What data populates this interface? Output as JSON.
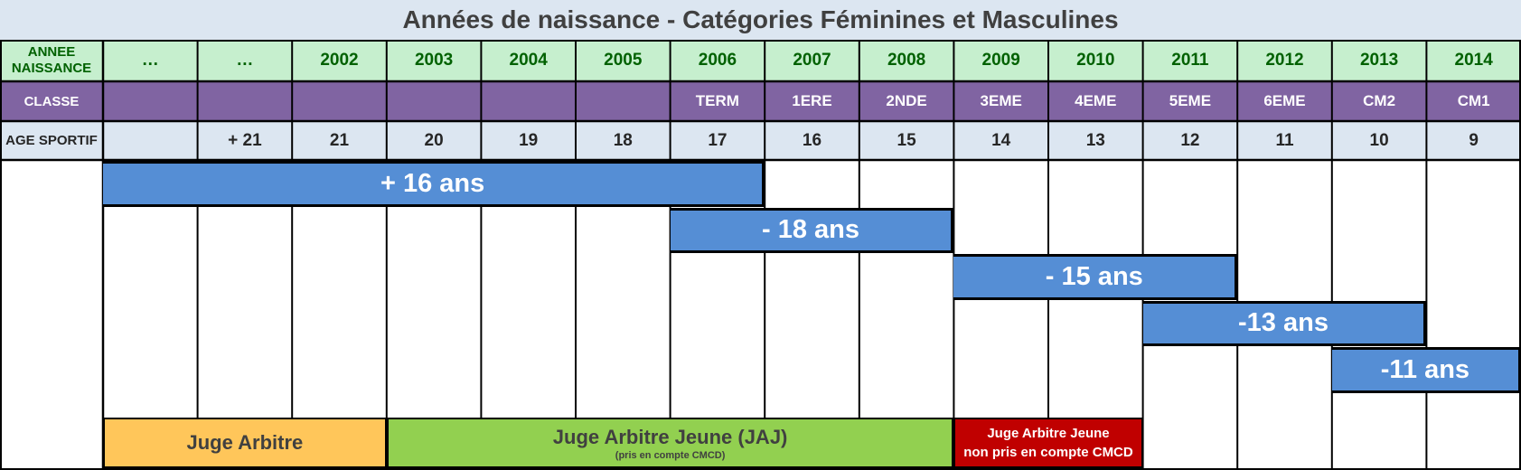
{
  "title": "Années de naissance - Catégories Féminines et Masculines",
  "headers": {
    "year_label": "ANNEE NAISSANCE",
    "class_label": "CLASSE",
    "age_label": "AGE SPORTIF"
  },
  "columns": [
    {
      "year": "…",
      "classe": "",
      "age": ""
    },
    {
      "year": "…",
      "classe": "",
      "age": "+ 21"
    },
    {
      "year": "2002",
      "classe": "",
      "age": "21"
    },
    {
      "year": "2003",
      "classe": "",
      "age": "20"
    },
    {
      "year": "2004",
      "classe": "",
      "age": "19"
    },
    {
      "year": "2005",
      "classe": "",
      "age": "18"
    },
    {
      "year": "2006",
      "classe": "TERM",
      "age": "17"
    },
    {
      "year": "2007",
      "classe": "1ERE",
      "age": "16"
    },
    {
      "year": "2008",
      "classe": "2NDE",
      "age": "15"
    },
    {
      "year": "2009",
      "classe": "3EME",
      "age": "14"
    },
    {
      "year": "2010",
      "classe": "4EME",
      "age": "13"
    },
    {
      "year": "2011",
      "classe": "5EME",
      "age": "12"
    },
    {
      "year": "2012",
      "classe": "6EME",
      "age": "11"
    },
    {
      "year": "2013",
      "classe": "CM2",
      "age": "10"
    },
    {
      "year": "2014",
      "classe": "CM1",
      "age": "9"
    }
  ],
  "categories": [
    {
      "label": "+ 16 ans",
      "start": 0,
      "end": 7
    },
    {
      "label": "- 18 ans",
      "start": 6,
      "end": 9
    },
    {
      "label": "- 15 ans",
      "start": 9,
      "end": 12
    },
    {
      "label": "-13 ans",
      "start": 11,
      "end": 14
    },
    {
      "label": "-11 ans",
      "start": 13,
      "end": 15
    }
  ],
  "judges": [
    {
      "label": "Juge Arbitre",
      "sublabel": "",
      "start": 0,
      "end": 3,
      "color": "#ffc65a",
      "text_color": "#404040"
    },
    {
      "label": "Juge Arbitre Jeune (JAJ)",
      "sublabel": "(pris en compte CMCD)",
      "start": 3,
      "end": 9,
      "color": "#92d050",
      "text_color": "#404040"
    },
    {
      "label": "Juge Arbitre Jeune",
      "sublabel": "non pris en compte CMCD",
      "start": 9,
      "end": 11,
      "color": "#c00000",
      "text_color": "#ffffff"
    }
  ],
  "colors": {
    "year_bg": "#c6efce",
    "year_text": "#006100",
    "class_bg": "#8064a2",
    "age_bg": "#dce6f1",
    "bar_bg": "#558ed5",
    "border": "#000000"
  }
}
